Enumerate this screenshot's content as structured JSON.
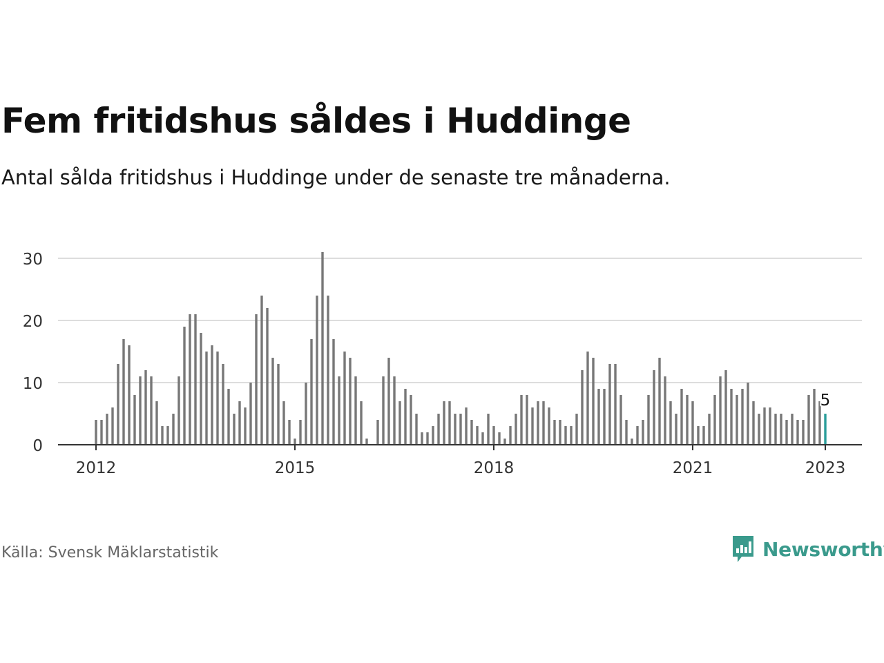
{
  "header": {
    "title": "Fem fritidshus såldes i Huddinge",
    "subtitle": "Antal sålda fritidshus i Huddinge under de senaste tre månaderna."
  },
  "footer": {
    "source": "Källa: Svensk Mäklarstatistik",
    "brand": "Newsworthy"
  },
  "colors": {
    "bar": "#777777",
    "highlight": "#2a9d9a",
    "grid": "#dddddd",
    "axis": "#333333",
    "brand": "#3a9a8c"
  },
  "chart_data": {
    "type": "bar",
    "title": "Fem fritidshus såldes i Huddinge",
    "subtitle": "Antal sålda fritidshus i Huddinge under de senaste tre månaderna.",
    "xlabel": "",
    "ylabel": "",
    "ylim": [
      0,
      31
    ],
    "yticks": [
      0,
      10,
      20,
      30
    ],
    "xticks": [
      {
        "label": "2012",
        "index": 0
      },
      {
        "label": "2015",
        "index": 36
      },
      {
        "label": "2018",
        "index": 72
      },
      {
        "label": "2021",
        "index": 108
      },
      {
        "label": "2023",
        "index": 132
      }
    ],
    "grid": true,
    "start": "2012-01",
    "end": "2023-01",
    "frequency": "monthly",
    "values": [
      4,
      4,
      5,
      6,
      13,
      17,
      16,
      8,
      11,
      12,
      11,
      7,
      3,
      3,
      5,
      11,
      19,
      21,
      21,
      18,
      15,
      16,
      15,
      13,
      9,
      5,
      7,
      6,
      10,
      21,
      24,
      22,
      14,
      13,
      7,
      4,
      1,
      4,
      10,
      17,
      24,
      31,
      24,
      17,
      11,
      15,
      14,
      11,
      7,
      1,
      0,
      4,
      11,
      14,
      11,
      7,
      9,
      8,
      5,
      2,
      2,
      3,
      5,
      7,
      7,
      5,
      5,
      6,
      4,
      3,
      2,
      5,
      3,
      2,
      1,
      3,
      5,
      8,
      8,
      6,
      7,
      7,
      6,
      4,
      4,
      3,
      3,
      5,
      12,
      15,
      14,
      9,
      9,
      13,
      13,
      8,
      4,
      1,
      3,
      4,
      8,
      12,
      14,
      11,
      7,
      5,
      9,
      8,
      7,
      3,
      3,
      5,
      8,
      11,
      12,
      9,
      8,
      9,
      10,
      7,
      5,
      6,
      6,
      5,
      5,
      4,
      5,
      4,
      4,
      8,
      9,
      7,
      5
    ],
    "highlight": {
      "index": 132,
      "label": "5"
    }
  }
}
